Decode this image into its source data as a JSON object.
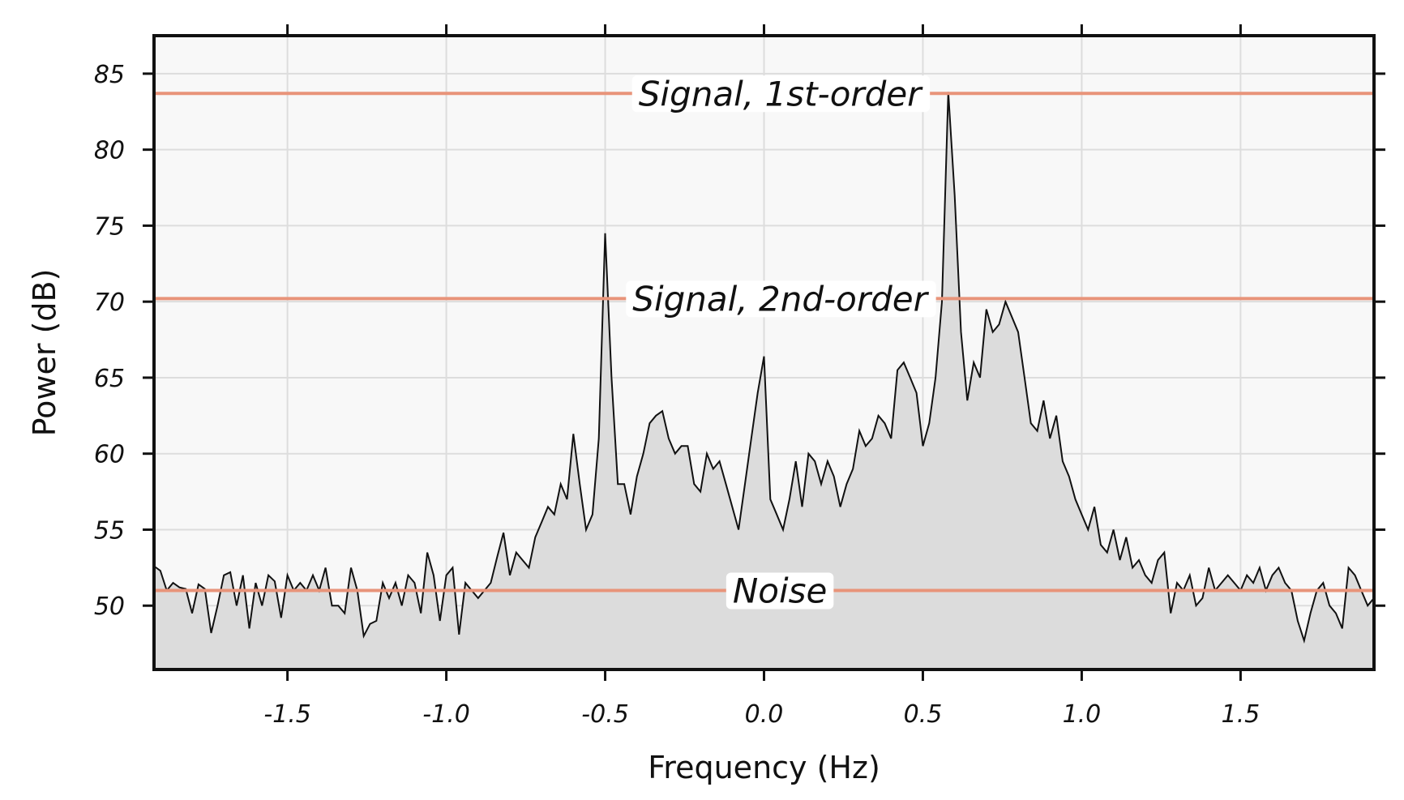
{
  "chart_data": {
    "type": "area",
    "xlabel": "Frequency (Hz)",
    "ylabel": "Power (dB)",
    "xlim": [
      -1.92,
      1.92
    ],
    "ylim": [
      45.8,
      87.5
    ],
    "xticks": [
      -1.5,
      -1.0,
      -0.5,
      0.0,
      0.5,
      1.0,
      1.5
    ],
    "xtick_labels": [
      "-1.5",
      "-1.0",
      "-0.5",
      "0.0",
      "0.5",
      "1.0",
      "1.5"
    ],
    "yticks": [
      50,
      55,
      60,
      65,
      70,
      75,
      80,
      85
    ],
    "ytick_labels": [
      "50",
      "55",
      "60",
      "65",
      "70",
      "75",
      "80",
      "85"
    ],
    "grid": true,
    "colors": {
      "fill": "#dcdcdc",
      "line": "#111111",
      "reference": "#e8947a",
      "plot_bg": "#f8f8f8"
    },
    "reference_lines": [
      {
        "label": "Signal, 1st-order",
        "y": 83.7,
        "label_x": 0.05
      },
      {
        "label": "Signal, 2nd-order",
        "y": 70.2,
        "label_x": 0.05
      },
      {
        "label": "Noise",
        "y": 51.0,
        "label_x": 0.05
      }
    ],
    "series": [
      {
        "points": [
          [
            -1.92,
            52.6
          ],
          [
            -1.9,
            52.3
          ],
          [
            -1.88,
            51.0
          ],
          [
            -1.86,
            51.5
          ],
          [
            -1.84,
            51.2
          ],
          [
            -1.82,
            51.1
          ],
          [
            -1.8,
            49.5
          ],
          [
            -1.78,
            51.4
          ],
          [
            -1.76,
            51.1
          ],
          [
            -1.74,
            48.2
          ],
          [
            -1.72,
            50.0
          ],
          [
            -1.7,
            52.0
          ],
          [
            -1.68,
            52.2
          ],
          [
            -1.66,
            50.0
          ],
          [
            -1.64,
            52.0
          ],
          [
            -1.62,
            48.5
          ],
          [
            -1.6,
            51.5
          ],
          [
            -1.58,
            50.0
          ],
          [
            -1.56,
            52.0
          ],
          [
            -1.54,
            51.6
          ],
          [
            -1.52,
            49.2
          ],
          [
            -1.5,
            52.0
          ],
          [
            -1.48,
            51.0
          ],
          [
            -1.46,
            51.5
          ],
          [
            -1.44,
            51.0
          ],
          [
            -1.42,
            52.0
          ],
          [
            -1.4,
            51.0
          ],
          [
            -1.38,
            52.5
          ],
          [
            -1.36,
            50.0
          ],
          [
            -1.34,
            50.0
          ],
          [
            -1.32,
            49.5
          ],
          [
            -1.3,
            52.5
          ],
          [
            -1.28,
            51.0
          ],
          [
            -1.26,
            48.0
          ],
          [
            -1.24,
            48.8
          ],
          [
            -1.22,
            49.0
          ],
          [
            -1.2,
            51.5
          ],
          [
            -1.18,
            50.5
          ],
          [
            -1.16,
            51.5
          ],
          [
            -1.14,
            50.0
          ],
          [
            -1.12,
            52.0
          ],
          [
            -1.1,
            51.5
          ],
          [
            -1.08,
            49.5
          ],
          [
            -1.06,
            53.5
          ],
          [
            -1.04,
            52.0
          ],
          [
            -1.02,
            49.0
          ],
          [
            -1.0,
            52.0
          ],
          [
            -0.98,
            52.5
          ],
          [
            -0.96,
            48.1
          ],
          [
            -0.94,
            51.5
          ],
          [
            -0.92,
            51.0
          ],
          [
            -0.9,
            50.5
          ],
          [
            -0.88,
            51.0
          ],
          [
            -0.86,
            51.5
          ],
          [
            -0.84,
            53.2
          ],
          [
            -0.82,
            54.8
          ],
          [
            -0.8,
            52.0
          ],
          [
            -0.78,
            53.5
          ],
          [
            -0.76,
            53.0
          ],
          [
            -0.74,
            52.5
          ],
          [
            -0.72,
            54.5
          ],
          [
            -0.7,
            55.5
          ],
          [
            -0.68,
            56.5
          ],
          [
            -0.66,
            56.0
          ],
          [
            -0.64,
            58.0
          ],
          [
            -0.62,
            57.0
          ],
          [
            -0.6,
            61.3
          ],
          [
            -0.58,
            58.0
          ],
          [
            -0.56,
            55.0
          ],
          [
            -0.54,
            56.0
          ],
          [
            -0.52,
            61.0
          ],
          [
            -0.5,
            74.5
          ],
          [
            -0.48,
            65.0
          ],
          [
            -0.46,
            58.0
          ],
          [
            -0.44,
            58.0
          ],
          [
            -0.42,
            56.0
          ],
          [
            -0.4,
            58.5
          ],
          [
            -0.38,
            60.0
          ],
          [
            -0.36,
            62.0
          ],
          [
            -0.34,
            62.5
          ],
          [
            -0.32,
            62.8
          ],
          [
            -0.3,
            61.0
          ],
          [
            -0.28,
            60.0
          ],
          [
            -0.26,
            60.5
          ],
          [
            -0.24,
            60.5
          ],
          [
            -0.22,
            58.0
          ],
          [
            -0.2,
            57.5
          ],
          [
            -0.18,
            60.0
          ],
          [
            -0.16,
            59.0
          ],
          [
            -0.14,
            59.5
          ],
          [
            -0.12,
            58.0
          ],
          [
            -0.1,
            56.5
          ],
          [
            -0.08,
            55.0
          ],
          [
            -0.06,
            58.0
          ],
          [
            -0.04,
            61.0
          ],
          [
            -0.02,
            64.0
          ],
          [
            0.0,
            66.4
          ],
          [
            0.02,
            57.0
          ],
          [
            0.04,
            56.0
          ],
          [
            0.06,
            55.0
          ],
          [
            0.08,
            57.0
          ],
          [
            0.1,
            59.5
          ],
          [
            0.12,
            56.5
          ],
          [
            0.14,
            60.0
          ],
          [
            0.16,
            59.5
          ],
          [
            0.18,
            58.0
          ],
          [
            0.2,
            59.5
          ],
          [
            0.22,
            58.5
          ],
          [
            0.24,
            56.5
          ],
          [
            0.26,
            58.0
          ],
          [
            0.28,
            59.0
          ],
          [
            0.3,
            61.5
          ],
          [
            0.32,
            60.5
          ],
          [
            0.34,
            61.0
          ],
          [
            0.36,
            62.5
          ],
          [
            0.38,
            62.0
          ],
          [
            0.4,
            61.0
          ],
          [
            0.42,
            65.5
          ],
          [
            0.44,
            66.0
          ],
          [
            0.46,
            65.0
          ],
          [
            0.48,
            64.0
          ],
          [
            0.5,
            60.5
          ],
          [
            0.52,
            62.0
          ],
          [
            0.54,
            65.0
          ],
          [
            0.56,
            70.0
          ],
          [
            0.58,
            83.8
          ],
          [
            0.6,
            77.0
          ],
          [
            0.62,
            68.0
          ],
          [
            0.64,
            63.5
          ],
          [
            0.66,
            66.0
          ],
          [
            0.68,
            65.0
          ],
          [
            0.7,
            69.5
          ],
          [
            0.72,
            68.0
          ],
          [
            0.74,
            68.5
          ],
          [
            0.76,
            70.0
          ],
          [
            0.78,
            69.0
          ],
          [
            0.8,
            68.0
          ],
          [
            0.82,
            65.0
          ],
          [
            0.84,
            62.0
          ],
          [
            0.86,
            61.5
          ],
          [
            0.88,
            63.5
          ],
          [
            0.9,
            61.0
          ],
          [
            0.92,
            62.5
          ],
          [
            0.94,
            59.5
          ],
          [
            0.96,
            58.5
          ],
          [
            0.98,
            57.0
          ],
          [
            1.0,
            56.0
          ],
          [
            1.02,
            55.0
          ],
          [
            1.04,
            56.5
          ],
          [
            1.06,
            54.0
          ],
          [
            1.08,
            53.5
          ],
          [
            1.1,
            55.0
          ],
          [
            1.12,
            53.0
          ],
          [
            1.14,
            54.5
          ],
          [
            1.16,
            52.5
          ],
          [
            1.18,
            53.0
          ],
          [
            1.2,
            52.0
          ],
          [
            1.22,
            51.5
          ],
          [
            1.24,
            53.0
          ],
          [
            1.26,
            53.5
          ],
          [
            1.28,
            49.5
          ],
          [
            1.3,
            51.5
          ],
          [
            1.32,
            51.0
          ],
          [
            1.34,
            52.0
          ],
          [
            1.36,
            50.0
          ],
          [
            1.38,
            50.5
          ],
          [
            1.4,
            52.5
          ],
          [
            1.42,
            51.0
          ],
          [
            1.44,
            51.5
          ],
          [
            1.46,
            52.0
          ],
          [
            1.48,
            51.5
          ],
          [
            1.5,
            51.0
          ],
          [
            1.52,
            52.0
          ],
          [
            1.54,
            51.5
          ],
          [
            1.56,
            52.5
          ],
          [
            1.58,
            51.0
          ],
          [
            1.6,
            52.0
          ],
          [
            1.62,
            52.5
          ],
          [
            1.64,
            51.5
          ],
          [
            1.66,
            51.0
          ],
          [
            1.68,
            49.0
          ],
          [
            1.7,
            47.7
          ],
          [
            1.72,
            49.5
          ],
          [
            1.74,
            51.0
          ],
          [
            1.76,
            51.5
          ],
          [
            1.78,
            50.0
          ],
          [
            1.8,
            49.5
          ],
          [
            1.82,
            48.5
          ],
          [
            1.84,
            52.5
          ],
          [
            1.86,
            52.0
          ],
          [
            1.88,
            51.0
          ],
          [
            1.9,
            50.0
          ],
          [
            1.92,
            50.5
          ]
        ]
      }
    ]
  }
}
